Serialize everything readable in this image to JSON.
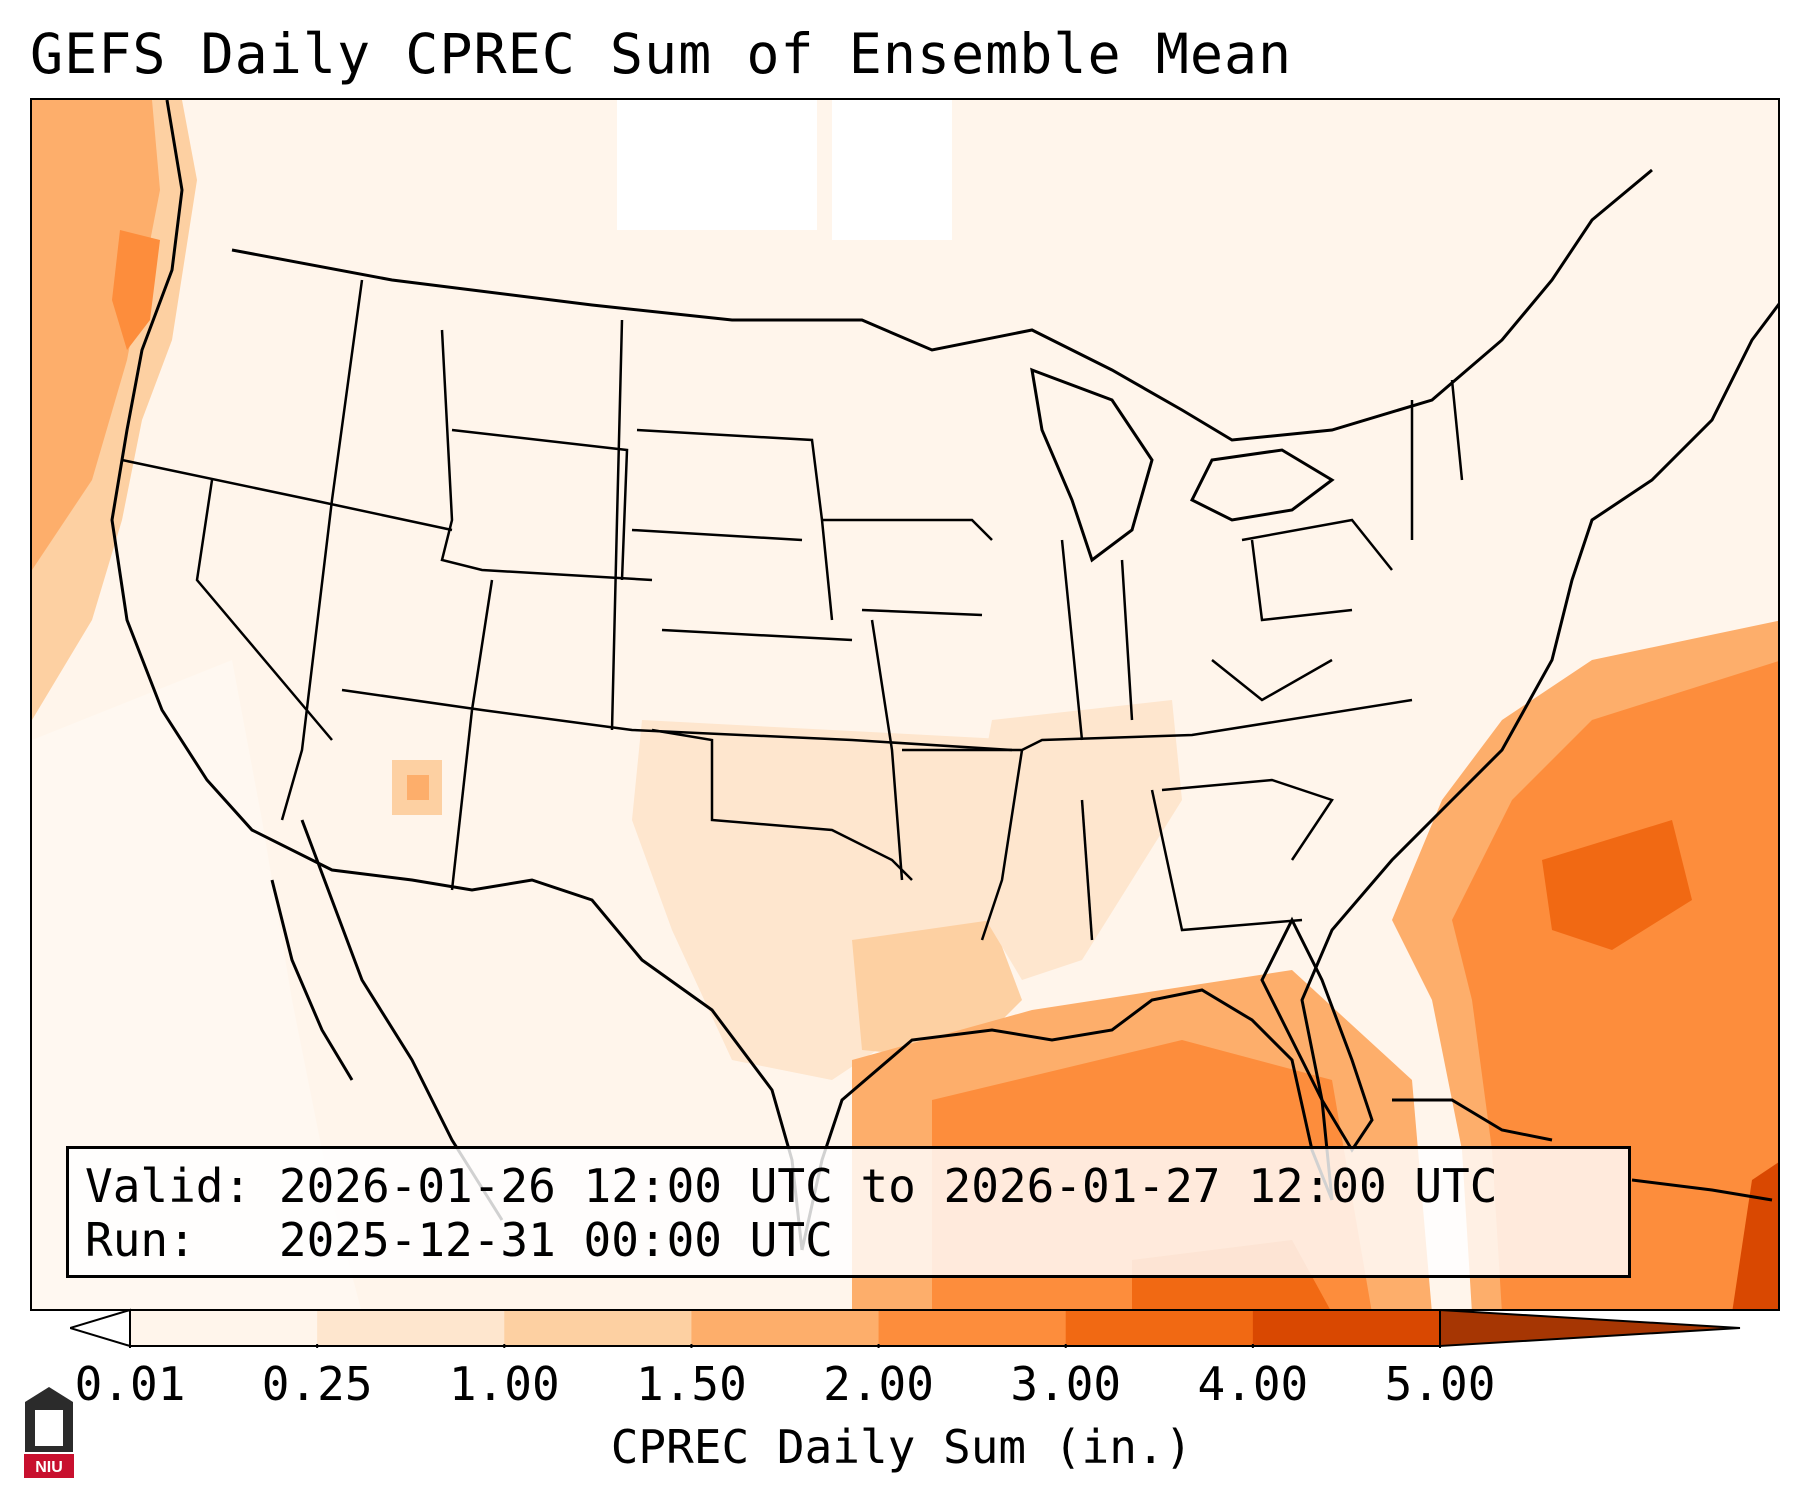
{
  "title": "GEFS Daily CPREC Sum of Ensemble Mean",
  "info": {
    "valid_label": "Valid:",
    "valid_value": "2026-01-26 12:00 UTC to 2026-01-27 12:00 UTC",
    "run_label": "Run:",
    "run_value": "2025-12-31 00:00 UTC"
  },
  "colorbar": {
    "label": "CPREC Daily Sum (in.)",
    "ticks": [
      "0.01",
      "0.25",
      "1.00",
      "1.50",
      "2.00",
      "3.00",
      "4.00",
      "5.00"
    ],
    "colors": [
      "#fff5eb",
      "#fee6ce",
      "#fdd0a2",
      "#fdae6b",
      "#fd8d3c",
      "#f16913",
      "#d94801"
    ]
  },
  "logo": {
    "text": "NIU",
    "name": "niu-logo"
  },
  "colors": {
    "very_light": "#fff5eb",
    "light": "#fee6ce",
    "medium_light": "#fdd0a2",
    "medium": "#fdae6b",
    "orange": "#fd8d3c",
    "dark_orange": "#f16913",
    "deep": "#d94801"
  }
}
